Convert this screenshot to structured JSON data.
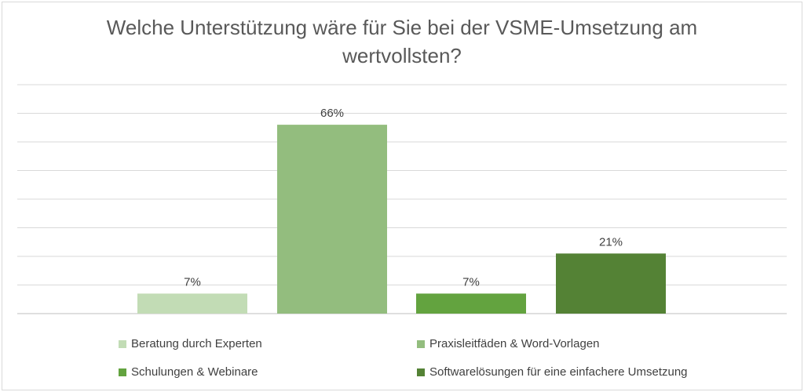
{
  "chart_data": {
    "type": "bar",
    "title_lines": [
      "Welche Unterstützung wäre für Sie bei der VSME-Umsetzung am",
      "wertvollsten?"
    ],
    "categories": [
      "Beratung durch Experten",
      "Praxisleitfäden & Word-Vorlagen",
      "Schulungen & Webinare",
      "Softwarelösungen für eine einfachere Umsetzung"
    ],
    "values": [
      7,
      66,
      7,
      21
    ],
    "data_labels": [
      "7%",
      "66%",
      "7%",
      "21%"
    ],
    "colors": [
      "#c2dcb5",
      "#93bd7e",
      "#63a33f",
      "#548235"
    ],
    "ylim": [
      0,
      80
    ],
    "unit": "%",
    "grid": true,
    "legend_position": "bottom"
  }
}
